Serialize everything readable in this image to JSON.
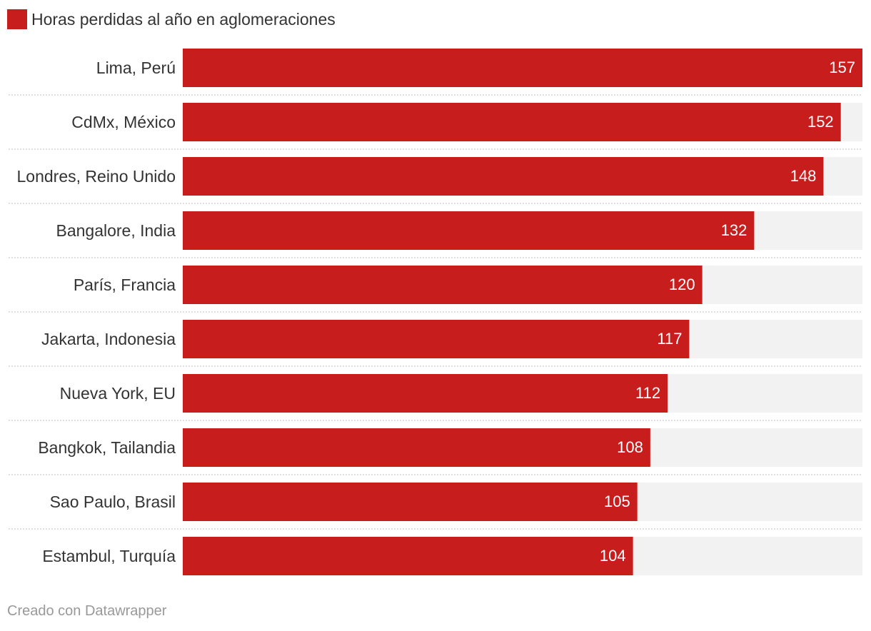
{
  "chart_data": {
    "type": "bar",
    "orientation": "horizontal",
    "legend": "Horas perdidas al año en aglomeraciones",
    "legend_position": "top-left",
    "categories": [
      "Lima, Perú",
      "CdMx, México",
      "Londres, Reino Unido",
      "Bangalore, India",
      "París, Francia",
      "Jakarta, Indonesia",
      "Nueva York, EU",
      "Bangkok, Tailandia",
      "Sao Paulo, Brasil",
      "Estambul, Turquía"
    ],
    "series": [
      {
        "name": "Horas perdidas al año en aglomeraciones",
        "values": [
          157,
          152,
          148,
          132,
          120,
          117,
          112,
          108,
          105,
          104
        ]
      }
    ],
    "xlim": [
      0,
      157
    ],
    "grid": false,
    "colors": {
      "bar": "#c71e1d",
      "track": "#f2f2f2",
      "separator": "#cccccc",
      "label": "#333333",
      "value_label": "#ffffff"
    }
  },
  "footer": {
    "credit": "Creado con Datawrapper"
  }
}
